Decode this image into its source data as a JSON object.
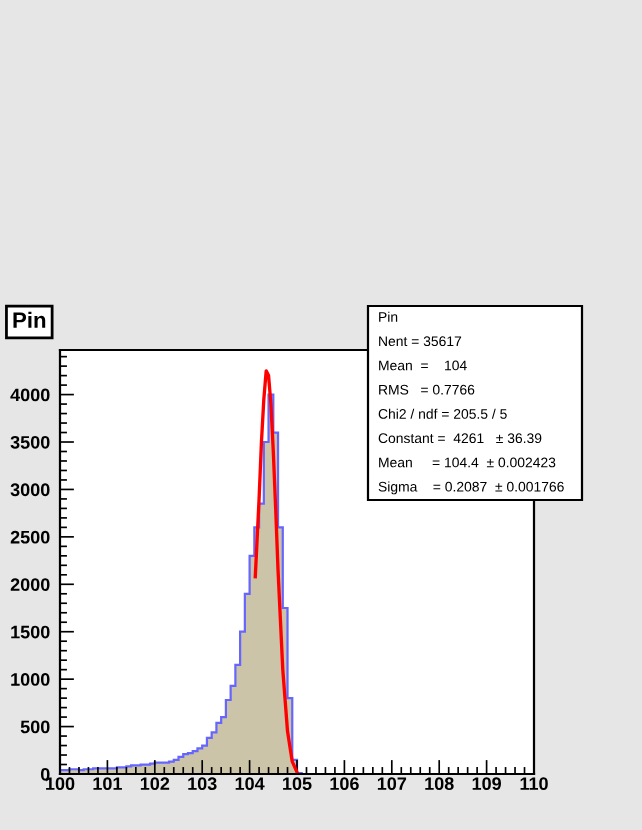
{
  "chart_data": {
    "type": "histogram",
    "title": "Pin",
    "xlim": [
      100,
      110
    ],
    "xticks": [
      100,
      101,
      102,
      103,
      104,
      105,
      106,
      107,
      108,
      109,
      110
    ],
    "ylim": [
      0,
      4470
    ],
    "yticks": [
      0,
      500,
      1000,
      1500,
      2000,
      2500,
      3000,
      3500,
      4000
    ],
    "grid": false,
    "series": [
      {
        "color": "#ccc4a8",
        "bins": [
          100.0,
          100.1,
          100.2,
          100.3,
          100.4,
          100.5,
          100.6,
          100.7,
          100.8,
          100.9,
          101.0,
          101.1,
          101.2,
          101.3,
          101.4,
          101.5,
          101.6,
          101.7,
          101.8,
          101.9,
          102.0,
          102.1,
          102.2,
          102.3,
          102.4,
          102.5,
          102.6,
          102.7,
          102.8,
          102.9,
          103.0,
          103.1,
          103.2,
          103.3,
          103.4,
          103.5,
          103.6,
          103.7,
          103.8,
          103.9,
          104.0,
          104.1,
          104.2,
          104.3,
          104.4,
          104.5,
          104.6,
          104.7,
          104.8,
          104.9,
          105.0,
          105.1
        ],
        "values": [
          40,
          40,
          50,
          50,
          40,
          50,
          50,
          60,
          60,
          60,
          60,
          60,
          70,
          70,
          80,
          90,
          90,
          100,
          100,
          110,
          120,
          120,
          120,
          130,
          150,
          180,
          210,
          220,
          240,
          270,
          300,
          380,
          440,
          540,
          600,
          780,
          930,
          1150,
          1500,
          1900,
          2300,
          2600,
          2850,
          3500,
          4000,
          3600,
          2600,
          1750,
          800,
          150,
          10
        ]
      },
      {
        "type": "line",
        "color": "#ff0000",
        "x": [
          104.12,
          104.2,
          104.25,
          104.3,
          104.35,
          104.4,
          104.45,
          104.5,
          104.55,
          104.6,
          104.7,
          104.8,
          104.9,
          105.0
        ],
        "values": [
          2080,
          2900,
          3500,
          3950,
          4250,
          4200,
          3900,
          3400,
          2800,
          2150,
          1100,
          450,
          130,
          20
        ]
      }
    ],
    "annotations": [
      "Pin",
      "Nent = 35617",
      "Mean  =    104",
      "RMS   = 0.7766",
      "Chi2 / ndf = 205.5 / 5",
      "Constant =  4261   ± 36.39",
      "Mean     = 104.4  ± 0.002423",
      "Sigma    = 0.2087  ± 0.001766"
    ]
  }
}
